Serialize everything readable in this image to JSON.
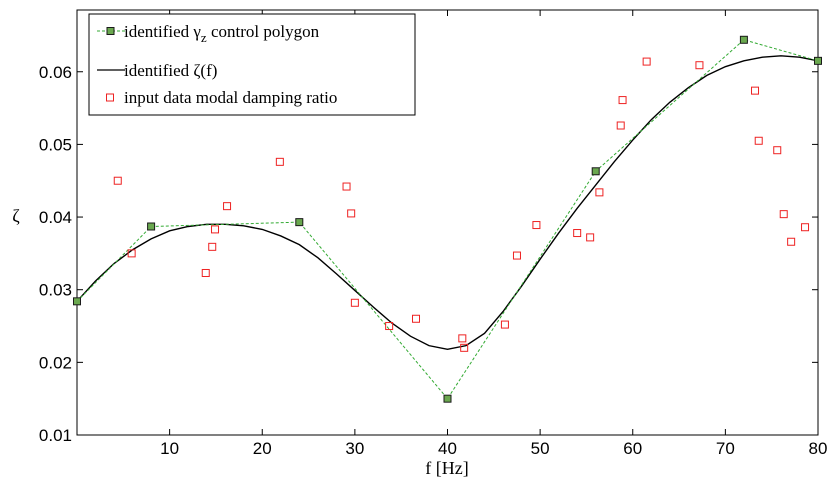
{
  "chart_data": {
    "type": "scatter",
    "xlabel": "f [Hz]",
    "ylabel": "ζ",
    "xlim": [
      0,
      80
    ],
    "ylim": [
      0.01,
      0.0685
    ],
    "xticks": [
      10,
      20,
      30,
      40,
      50,
      60,
      70,
      80
    ],
    "yticks": [
      0.01,
      0.02,
      0.03,
      0.04,
      0.05,
      0.06
    ],
    "ytick_labels": [
      "0.01",
      "0.02",
      "0.03",
      "0.04",
      "0.05",
      "0.06"
    ],
    "grid": false,
    "legend_position": "top-left",
    "series": [
      {
        "name": "identified γ",
        "name_subscript": "z",
        "name_suffix": " control polygon",
        "kind": "polygon",
        "color": "#33aa33",
        "marker_fill": "#6aa84f",
        "x": [
          0,
          8,
          24,
          40,
          56,
          72,
          80
        ],
        "y": [
          0.0284,
          0.0387,
          0.0393,
          0.015,
          0.0463,
          0.0644,
          0.0615
        ]
      },
      {
        "name": "identified ζ(f)",
        "kind": "curve",
        "color": "#000000",
        "x": [
          0,
          2,
          4,
          6,
          8,
          10,
          12,
          14,
          16,
          18,
          20,
          22,
          24,
          26,
          28,
          30,
          32,
          34,
          36,
          38,
          40,
          42,
          44,
          46,
          48,
          50,
          52,
          54,
          56,
          58,
          60,
          62,
          64,
          66,
          68,
          70,
          72,
          74,
          76,
          78,
          80
        ],
        "y": [
          0.0284,
          0.0312,
          0.0336,
          0.0355,
          0.037,
          0.0381,
          0.0387,
          0.039,
          0.039,
          0.0388,
          0.0383,
          0.0374,
          0.0362,
          0.0344,
          0.0322,
          0.0299,
          0.0276,
          0.0254,
          0.0236,
          0.0223,
          0.0218,
          0.0223,
          0.024,
          0.027,
          0.0305,
          0.0342,
          0.0378,
          0.0412,
          0.0444,
          0.0476,
          0.0506,
          0.0534,
          0.0558,
          0.0578,
          0.0595,
          0.0607,
          0.0615,
          0.062,
          0.0622,
          0.062,
          0.0615
        ]
      },
      {
        "name": "input data modal damping ratio",
        "kind": "points",
        "color": "#ee2222",
        "x": [
          4.4,
          5.9,
          13.9,
          14.6,
          14.9,
          16.2,
          21.9,
          29.1,
          29.6,
          30.0,
          33.7,
          36.6,
          41.6,
          41.8,
          46.2,
          47.5,
          49.6,
          54.0,
          55.4,
          56.4,
          58.7,
          58.9,
          61.5,
          67.2,
          73.2,
          73.6,
          75.6,
          76.3,
          77.1,
          78.6
        ],
        "y": [
          0.045,
          0.035,
          0.0323,
          0.0359,
          0.0383,
          0.0415,
          0.0476,
          0.0442,
          0.0405,
          0.0282,
          0.025,
          0.026,
          0.0233,
          0.022,
          0.0252,
          0.0347,
          0.0389,
          0.0378,
          0.0372,
          0.0434,
          0.0526,
          0.0561,
          0.0614,
          0.0609,
          0.0574,
          0.0505,
          0.0492,
          0.0404,
          0.0366,
          0.0386
        ]
      }
    ]
  }
}
